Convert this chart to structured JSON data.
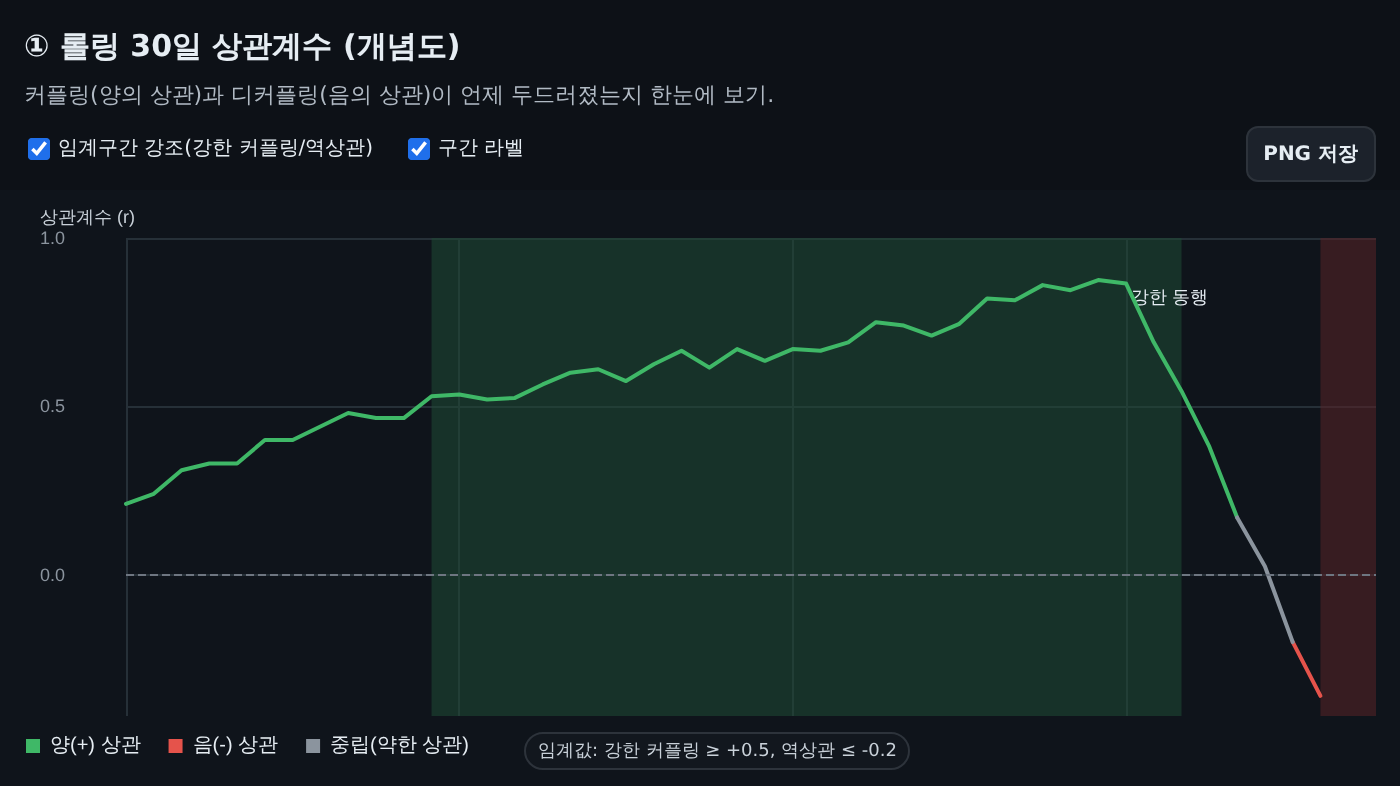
{
  "chart_data": {
    "type": "line",
    "title": "① 롤링 30일 상관계수 (개념도)",
    "subtitle": "커플링(양의 상관)과 디커플링(음의 상관)이 언제 두드러졌는지 한눈에 보기.",
    "ylabel": "상관계수 (r)",
    "annotations": [
      "임계구간 강조(강한 커플링/역상관)",
      "구간 라벨",
      "PNG 저장",
      "임계값: 강한 커플링 ≥ +0.5, 역상관 ≤ -0.2",
      "강한 동행"
    ],
    "categories": [
      null,
      null,
      null,
      null,
      null,
      null,
      null,
      null,
      null,
      null,
      null,
      null,
      null,
      null,
      null,
      null,
      null,
      null,
      null,
      null,
      null,
      null,
      null,
      null,
      null,
      null,
      null,
      null,
      null,
      null,
      null,
      null,
      null,
      null,
      null,
      null,
      null,
      null,
      null,
      null,
      null,
      null,
      null,
      null,
      null,
      null
    ],
    "ylim": [
      -0.42,
      1.0
    ],
    "yticks": [
      {
        "value": 0,
        "label": "0.0"
      },
      {
        "value": 0.5,
        "label": "0.5"
      },
      {
        "value": 1,
        "label": "1.0"
      }
    ],
    "tick_labels": "y",
    "grid": true,
    "legend": "bottom left",
    "marker": "none",
    "line_style": "solid",
    "series": [
      {
        "name": "양(+) 상관",
        "color": "#3fb867",
        "values": [
          0.21,
          0.24,
          0.31,
          0.33,
          0.33,
          0.4,
          0.4,
          0.44,
          0.48,
          0.465,
          0.465,
          0.53,
          0.535,
          0.52,
          0.525,
          0.565,
          0.6,
          0.61,
          0.575,
          0.625,
          0.665,
          0.615,
          0.67,
          0.635,
          0.67,
          0.665,
          0.69,
          0.75,
          0.74,
          0.71,
          0.745,
          0.82,
          0.815,
          0.86,
          0.845,
          0.875,
          0.865,
          0.69,
          0.545,
          0.38,
          0.17,
          null,
          null,
          null,
          null,
          null
        ]
      },
      {
        "name": "음(-) 상관",
        "color": "#e5534b",
        "values": [
          null,
          null,
          null,
          null,
          null,
          null,
          null,
          null,
          null,
          null,
          null,
          null,
          null,
          null,
          null,
          null,
          null,
          null,
          null,
          null,
          null,
          null,
          null,
          null,
          null,
          null,
          null,
          null,
          null,
          null,
          null,
          null,
          null,
          null,
          null,
          null,
          null,
          null,
          null,
          null,
          null,
          null,
          -0.2,
          -0.36,
          null,
          null
        ]
      },
      {
        "name": "중립(약한 상관)",
        "color": "#8b949e",
        "values": [
          null,
          null,
          null,
          null,
          null,
          null,
          null,
          null,
          null,
          null,
          null,
          null,
          null,
          null,
          null,
          null,
          null,
          null,
          null,
          null,
          null,
          null,
          null,
          null,
          null,
          null,
          null,
          null,
          null,
          null,
          null,
          null,
          null,
          null,
          null,
          null,
          null,
          null,
          null,
          null,
          0.17,
          0.025,
          -0.2,
          null,
          null,
          null
        ]
      }
    ],
    "ref_lines": [
      {
        "axis": "y",
        "value": 0,
        "color": "#6e7681",
        "line_style": "dashed"
      }
    ]
  }
}
